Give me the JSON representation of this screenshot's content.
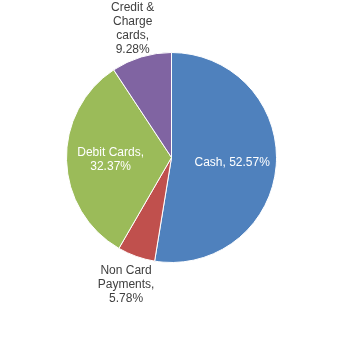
{
  "chart_data": {
    "type": "pie",
    "categories": [
      "Cash",
      "Non Card Payments",
      "Debit Cards",
      "Credit & Charge cards"
    ],
    "values": [
      52.57,
      5.78,
      32.37,
      9.28
    ],
    "value_labels": [
      "Cash, 52.57%",
      "Non Card Payments, 5.78%",
      "Debit Cards, 32.37%",
      "Credit & Charge cards, 9.28%"
    ],
    "colors": [
      "#4f81bd",
      "#c0504d",
      "#9bbb59",
      "#8064a2"
    ],
    "data_labels": true
  }
}
